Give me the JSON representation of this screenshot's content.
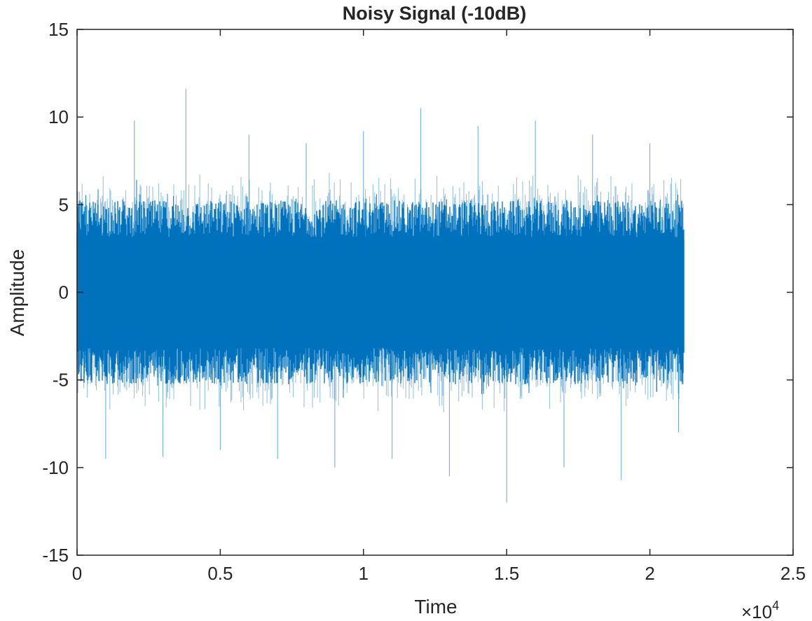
{
  "chart_data": {
    "type": "line",
    "title": "Noisy Signal (-10dB)",
    "xlabel": "Time",
    "ylabel": "Amplitude",
    "x_exponent_label": "×10",
    "x_exponent_power": "4",
    "xlim": [
      0,
      2.5
    ],
    "ylim": [
      -15,
      15
    ],
    "x_ticks": [
      0,
      0.5,
      1,
      1.5,
      2,
      2.5
    ],
    "x_tick_labels": [
      "0",
      "0.5",
      "1",
      "1.5",
      "2",
      "2.5"
    ],
    "y_ticks": [
      -15,
      -10,
      -5,
      0,
      5,
      10,
      15
    ],
    "y_tick_labels": [
      "-15",
      "-10",
      "-5",
      "0",
      "5",
      "10",
      "15"
    ],
    "grid": false,
    "line_color": "#0072bd",
    "series": [
      {
        "signal_start": 0,
        "signal_end": 2.12,
        "core_amplitude": 3.5,
        "typical_peak": 7,
        "max_peak": 11.6,
        "min_trough": -12.1,
        "samples_x": [
          0.0,
          0.1,
          0.2,
          0.3,
          0.38,
          0.5,
          0.6,
          0.7,
          0.8,
          0.9,
          1.0,
          1.1,
          1.2,
          1.3,
          1.4,
          1.5,
          1.6,
          1.7,
          1.8,
          1.9,
          2.0,
          2.1
        ],
        "samples_y": [
          7.0,
          -9.5,
          9.8,
          -9.4,
          11.6,
          -9.0,
          9.0,
          -9.5,
          8.5,
          -10.0,
          9.2,
          -9.5,
          10.5,
          -10.5,
          9.5,
          -12.0,
          9.8,
          -10.0,
          9.0,
          -10.7,
          8.5,
          -8.0
        ]
      }
    ]
  }
}
